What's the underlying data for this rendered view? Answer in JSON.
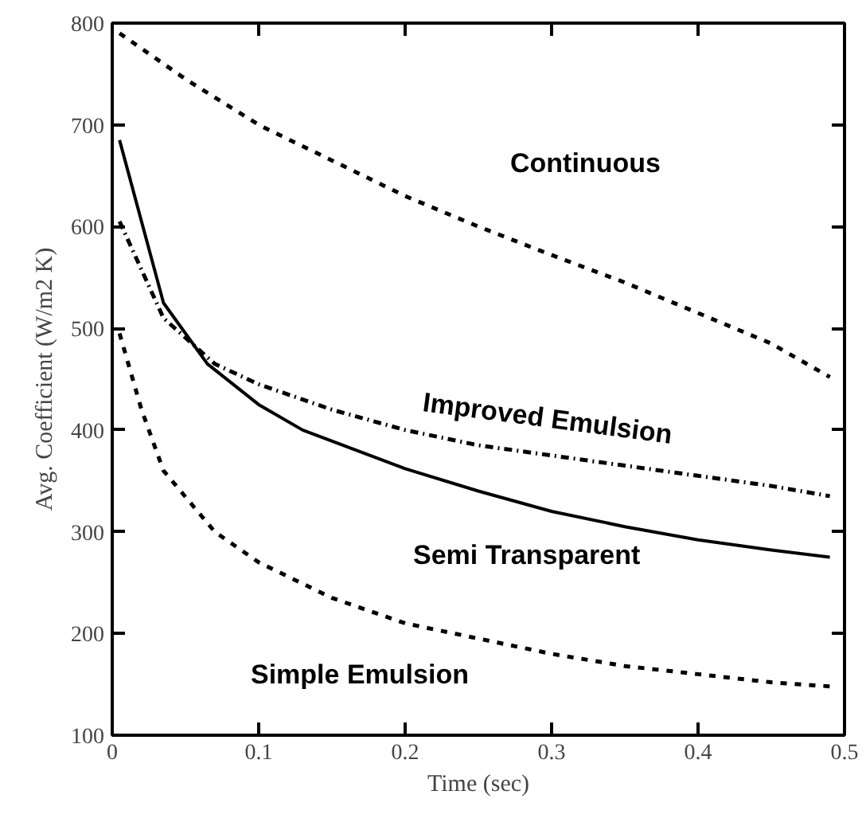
{
  "chart_data": {
    "type": "line",
    "xlabel": "Time (sec)",
    "ylabel": "Avg. Coefficient (W/m2 K)",
    "xlim": [
      0,
      0.5
    ],
    "ylim": [
      100,
      800
    ],
    "xticks": [
      0,
      0.1,
      0.2,
      0.3,
      0.4,
      0.5
    ],
    "yticks": [
      100,
      200,
      300,
      400,
      500,
      600,
      700,
      800
    ],
    "grid": false,
    "series": [
      {
        "name": "Continuous",
        "color": "#000000",
        "line_style": "dashed",
        "x": [
          0.005,
          0.05,
          0.1,
          0.15,
          0.2,
          0.25,
          0.3,
          0.35,
          0.4,
          0.45,
          0.49
        ],
        "values": [
          790,
          745,
          700,
          665,
          630,
          600,
          572,
          545,
          515,
          485,
          452
        ]
      },
      {
        "name": "Improved Emulsion",
        "color": "#000000",
        "line_style": "dashdot",
        "x": [
          0.005,
          0.035,
          0.07,
          0.1,
          0.15,
          0.2,
          0.25,
          0.3,
          0.35,
          0.4,
          0.45,
          0.49
        ],
        "values": [
          605,
          510,
          465,
          445,
          420,
          400,
          385,
          375,
          365,
          355,
          345,
          335
        ]
      },
      {
        "name": "Semi Transparent",
        "color": "#000000",
        "line_style": "solid",
        "x": [
          0.005,
          0.035,
          0.065,
          0.1,
          0.13,
          0.2,
          0.25,
          0.3,
          0.35,
          0.4,
          0.45,
          0.49
        ],
        "values": [
          685,
          525,
          465,
          425,
          400,
          362,
          340,
          320,
          305,
          292,
          282,
          275
        ]
      },
      {
        "name": "Simple Emulsion",
        "color": "#000000",
        "line_style": "dashed",
        "x": [
          0.005,
          0.02,
          0.035,
          0.07,
          0.1,
          0.15,
          0.2,
          0.25,
          0.3,
          0.35,
          0.4,
          0.45,
          0.49
        ],
        "values": [
          495,
          420,
          360,
          300,
          270,
          235,
          210,
          195,
          180,
          168,
          160,
          152,
          148
        ]
      }
    ]
  }
}
